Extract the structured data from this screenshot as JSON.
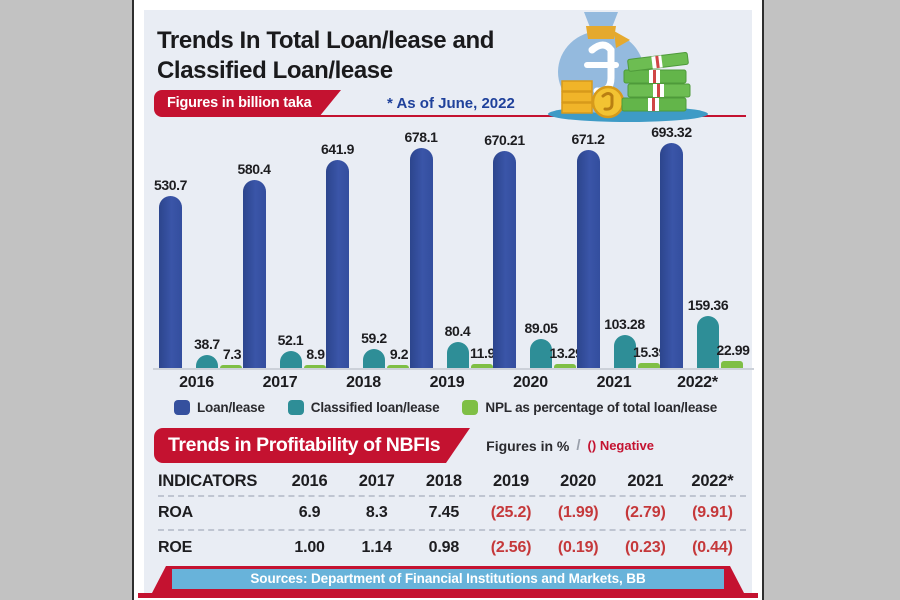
{
  "header": {
    "title_line1": "Trends In Total Loan/lease and",
    "title_line2": "Classified Loan/lease",
    "unit_badge": "Figures in billion taka",
    "as_of_note": "* As of June, 2022"
  },
  "chart_data": {
    "type": "bar",
    "title": "Trends In Total Loan/lease and Classified Loan/lease",
    "unit": "billion taka",
    "categories": [
      "2016",
      "2017",
      "2018",
      "2019",
      "2020",
      "2021",
      "2022*"
    ],
    "series": [
      {
        "name": "Loan/lease",
        "color": "#35509e",
        "values": [
          530.7,
          580.4,
          641.9,
          678.1,
          670.21,
          671.2,
          693.32
        ]
      },
      {
        "name": "Classified loan/lease",
        "color": "#2e8e97",
        "values": [
          38.7,
          52.1,
          59.2,
          80.4,
          89.05,
          103.28,
          159.36
        ]
      },
      {
        "name": "NPL as percentage of total loan/lease",
        "color": "#7fbf45",
        "values": [
          7.3,
          8.9,
          9.2,
          11.9,
          13.29,
          15.39,
          22.99
        ]
      }
    ],
    "ylim": [
      0,
      700
    ],
    "grid": false,
    "value_labels": true,
    "legend_position": "bottom"
  },
  "profitability": {
    "banner_title": "Trends in Profitability of NBFIs",
    "unit_note": "Figures in %",
    "slash": "/",
    "negative_note": "() Negative",
    "columns": [
      "INDICATORS",
      "2016",
      "2017",
      "2018",
      "2019",
      "2020",
      "2021",
      "2022*"
    ],
    "rows": [
      {
        "indicator": "ROA",
        "values": [
          "6.9",
          "8.3",
          "7.45",
          "(25.2)",
          "(1.99)",
          "(2.79)",
          "(9.91)"
        ]
      },
      {
        "indicator": "ROE",
        "values": [
          "1.00",
          "1.14",
          "0.98",
          "(2.56)",
          "(0.19)",
          "(0.23)",
          "(0.44)"
        ]
      }
    ],
    "negative_format": "parentheses"
  },
  "footer": {
    "sources_text": "Sources:  Department of Financial Institutions and Markets, BB"
  },
  "colors": {
    "accent_red": "#c41230",
    "note_blue": "#1f419b",
    "panel_bg": "#e9edf4",
    "footer_bar_blue": "#68b3da",
    "negative_value_red": "#c5383a",
    "bar_loan": "#35509e",
    "bar_classified": "#2e8e97",
    "bar_npl": "#7fbf45"
  }
}
